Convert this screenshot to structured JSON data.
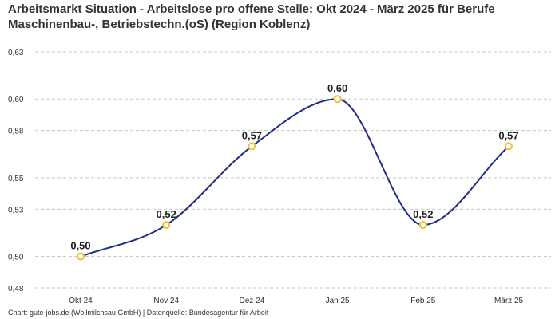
{
  "chart_data": {
    "type": "line",
    "title": "Arbeitsmarkt Situation - Arbeitslose pro offene Stelle: Okt 2024 - März 2025 für Berufe Maschinenbau-, Betriebstechn.(oS) (Region Koblenz)",
    "categories": [
      "Okt 24",
      "Nov 24",
      "Dez 24",
      "Jan 25",
      "Feb 25",
      "März 25"
    ],
    "series": [
      {
        "values": [
          0.5,
          0.52,
          0.57,
          0.6,
          0.52,
          0.57
        ],
        "data_labels": [
          "0,50",
          "0,52",
          "0,57",
          "0,60",
          "0,52",
          "0,57"
        ],
        "color": "#1f2d86",
        "marker_color": "#f2c12e"
      }
    ],
    "yticks": [
      0.48,
      0.5,
      0.53,
      0.55,
      0.58,
      0.6,
      0.63
    ],
    "ytick_labels": [
      "0,48",
      "0,50",
      "0,53",
      "0,55",
      "0,58",
      "0,60",
      "0,63"
    ],
    "ylim": [
      0.48,
      0.63
    ],
    "grid": true,
    "xlabel": "",
    "ylabel": ""
  },
  "source": "Chart: gute-jobs.de (Wollmilchsau GmbH) | Datenquelle: Bundesagentur für Arbeit"
}
